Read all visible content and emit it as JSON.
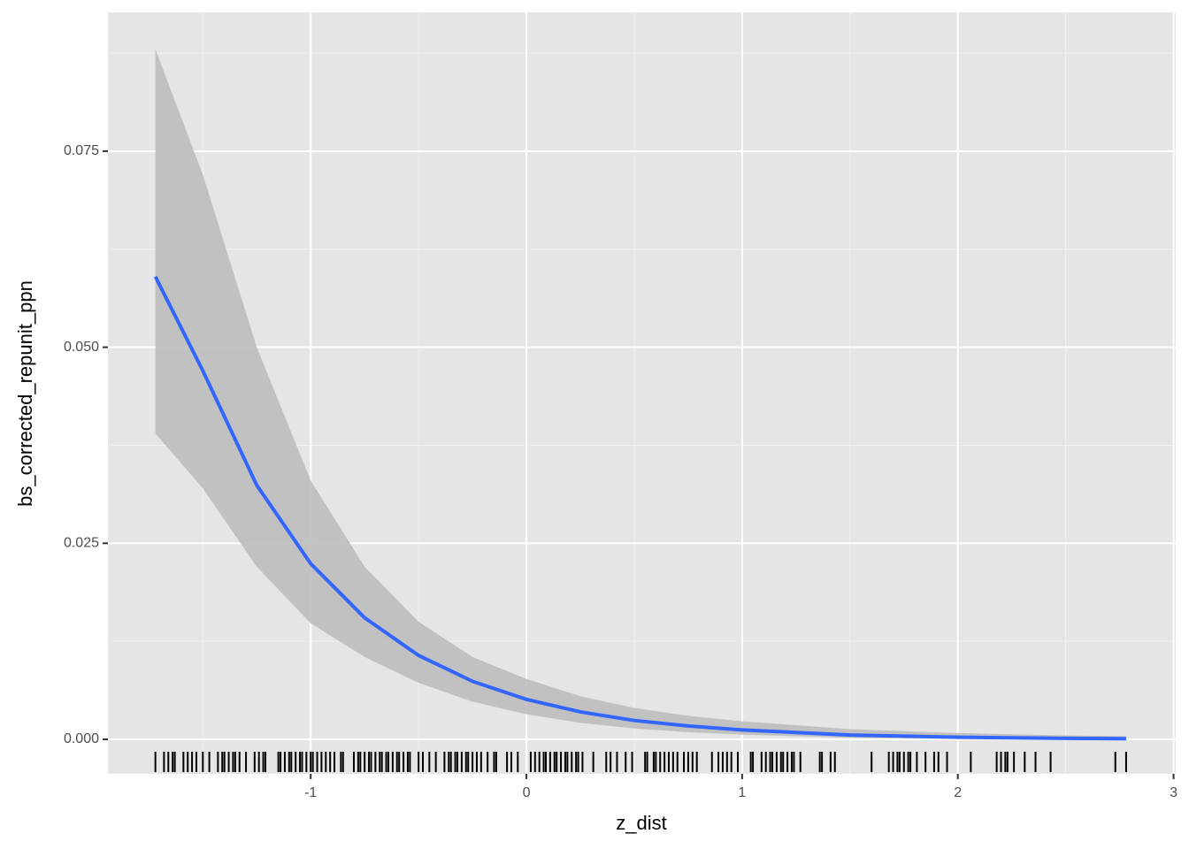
{
  "chart_data": {
    "type": "smooth",
    "x_label": "z_dist",
    "y_label": "bs_corrected_repunit_ppn",
    "xlim": [
      -1.94,
      3.01
    ],
    "ylim": [
      -0.0044,
      0.0927
    ],
    "xticks": [
      -1,
      0,
      1,
      2,
      3
    ],
    "yticks": [
      {
        "value": 0,
        "label": "0.000"
      },
      {
        "value": 0.025,
        "label": "0.025"
      },
      {
        "value": 0.05,
        "label": "0.050"
      },
      {
        "value": 0.075,
        "label": "0.075"
      }
    ],
    "grid": true,
    "color": "#3366ff",
    "ribbon_color": "#bdbdbd",
    "x": [
      -1.72,
      -1.5,
      -1.25,
      -1,
      -0.75,
      -0.5,
      -0.25,
      0,
      0.25,
      0.5,
      0.75,
      1,
      1.5,
      2,
      2.5,
      2.78
    ],
    "values": [
      0.059,
      0.047,
      0.0324,
      0.0224,
      0.0155,
      0.0107,
      0.0074,
      0.0051,
      0.0035,
      0.0024,
      0.0017,
      0.0012,
      0.00055,
      0.00026,
      0.00012,
      8e-05
    ],
    "upper": [
      0.088,
      0.072,
      0.05,
      0.033,
      0.022,
      0.015,
      0.0105,
      0.0077,
      0.0055,
      0.004,
      0.003,
      0.0023,
      0.0013,
      0.0008,
      0.0005,
      0.0004
    ],
    "lower": [
      0.039,
      0.032,
      0.022,
      0.0148,
      0.0105,
      0.0072,
      0.0048,
      0.0032,
      0.0021,
      0.0014,
      0.0009,
      0.0006,
      0.0002,
      8e-05,
      3e-05,
      1e-05
    ],
    "rug": [
      -1.72,
      -1.68,
      -1.66,
      -1.64,
      -1.63,
      -1.59,
      -1.57,
      -1.55,
      -1.53,
      -1.5,
      -1.47,
      -1.43,
      -1.41,
      -1.4,
      -1.38,
      -1.36,
      -1.35,
      -1.33,
      -1.3,
      -1.26,
      -1.24,
      -1.22,
      -1.21,
      -1.15,
      -1.14,
      -1.12,
      -1.1,
      -1.09,
      -1.07,
      -1.05,
      -1.04,
      -1.02,
      -1,
      -0.99,
      -0.97,
      -0.95,
      -0.93,
      -0.91,
      -0.89,
      -0.86,
      -0.85,
      -0.8,
      -0.78,
      -0.77,
      -0.75,
      -0.73,
      -0.72,
      -0.7,
      -0.68,
      -0.67,
      -0.65,
      -0.64,
      -0.62,
      -0.6,
      -0.59,
      -0.57,
      -0.55,
      -0.54,
      -0.5,
      -0.48,
      -0.45,
      -0.42,
      -0.38,
      -0.36,
      -0.35,
      -0.33,
      -0.32,
      -0.3,
      -0.28,
      -0.27,
      -0.25,
      -0.23,
      -0.21,
      -0.18,
      -0.15,
      -0.14,
      -0.09,
      -0.07,
      -0.04,
      0.02,
      0.04,
      0.06,
      0.08,
      0.09,
      0.11,
      0.13,
      0.14,
      0.16,
      0.18,
      0.19,
      0.21,
      0.23,
      0.24,
      0.26,
      0.31,
      0.37,
      0.39,
      0.42,
      0.46,
      0.49,
      0.55,
      0.56,
      0.59,
      0.6,
      0.62,
      0.64,
      0.66,
      0.68,
      0.7,
      0.73,
      0.75,
      0.77,
      0.79,
      0.86,
      0.89,
      0.91,
      0.93,
      0.95,
      0.98,
      1.04,
      1.05,
      1.09,
      1.11,
      1.13,
      1.14,
      1.16,
      1.18,
      1.19,
      1.21,
      1.23,
      1.24,
      1.27,
      1.36,
      1.37,
      1.41,
      1.43,
      1.6,
      1.68,
      1.7,
      1.72,
      1.73,
      1.75,
      1.77,
      1.78,
      1.81,
      1.85,
      1.89,
      1.91,
      1.95,
      2.06,
      2.18,
      2.2,
      2.22,
      2.23,
      2.26,
      2.31,
      2.36,
      2.43,
      2.73,
      2.78
    ]
  }
}
